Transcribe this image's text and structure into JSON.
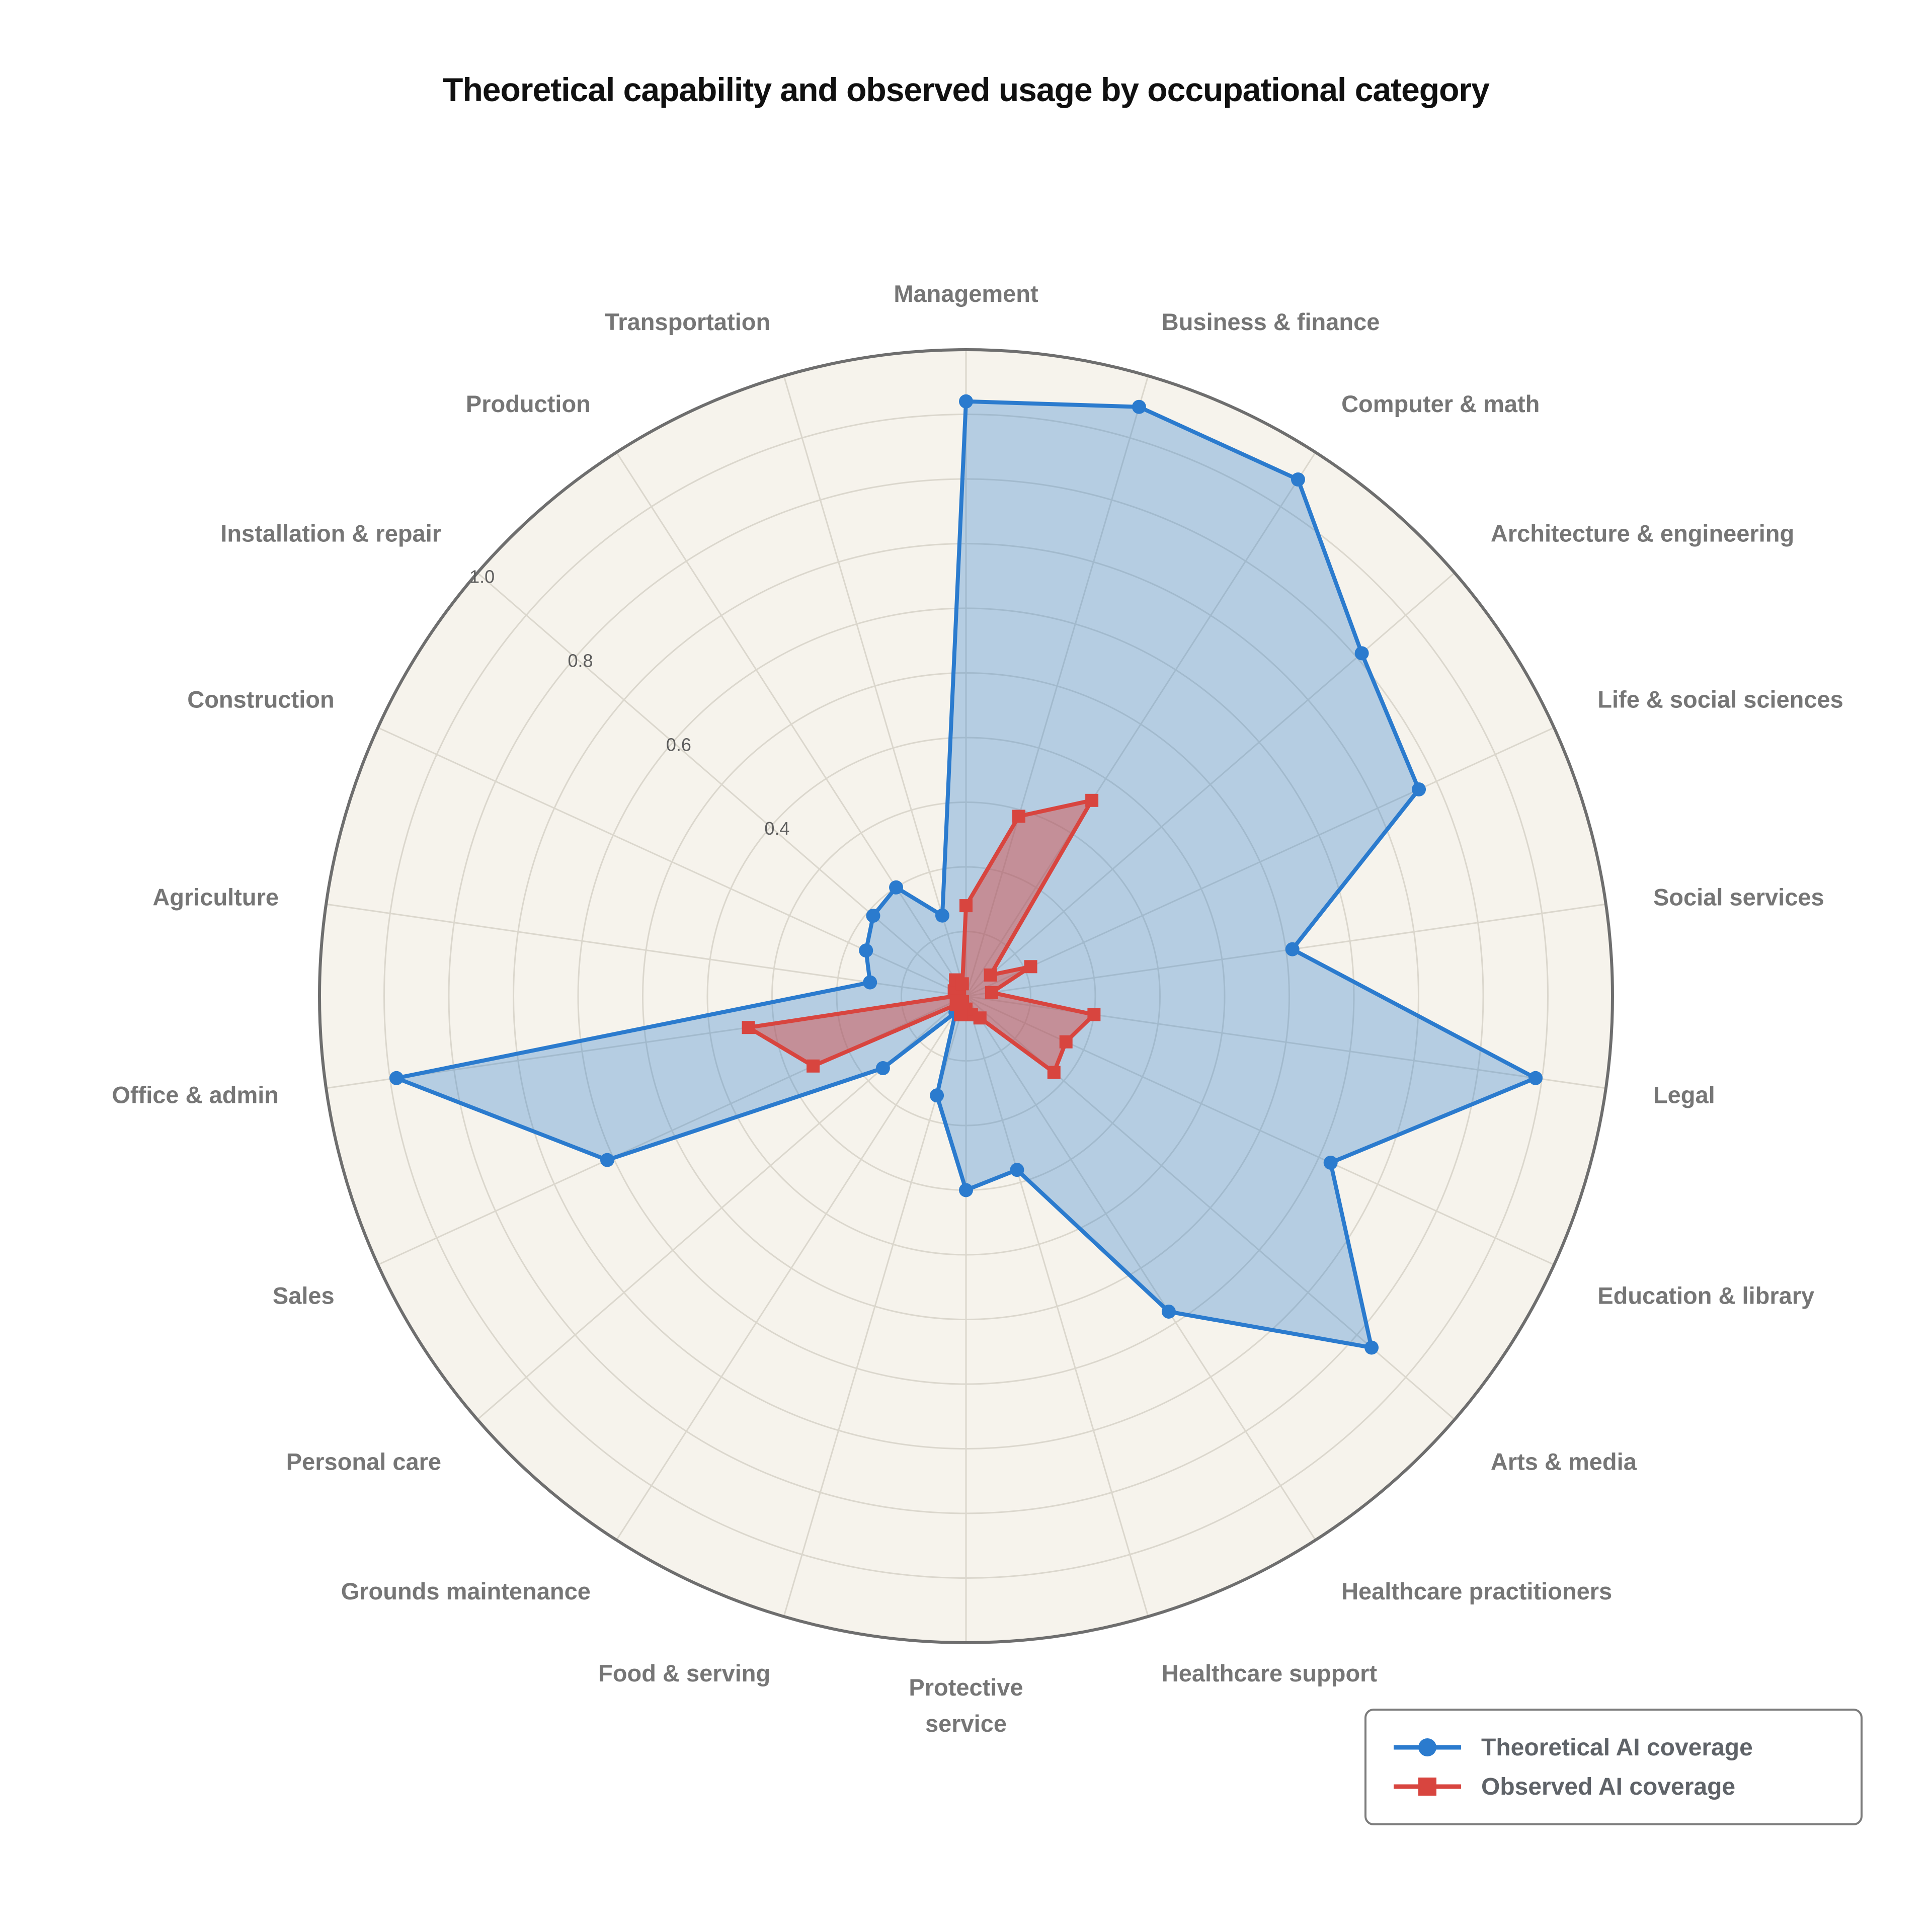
{
  "title": "Theoretical capability and observed usage by occupational category",
  "chart_data": {
    "type": "radar",
    "title": "Theoretical capability and observed usage by occupational category",
    "categories": [
      "Management",
      "Business & finance",
      "Computer & math",
      "Architecture & engineering",
      "Life & social sciences",
      "Social services",
      "Legal",
      "Education & library",
      "Arts & media",
      "Healthcare practitioners",
      "Healthcare support",
      "Protective service",
      "Food & serving",
      "Grounds maintenance",
      "Personal care",
      "Sales",
      "Office & admin",
      "Agriculture",
      "Construction",
      "Installation & repair",
      "Production",
      "Transportation"
    ],
    "series": [
      {
        "name": "Theoretical AI coverage",
        "color": "#2b7bce",
        "marker": "circle",
        "fill_opacity": 0.32,
        "values": [
          0.92,
          0.95,
          0.95,
          0.81,
          0.77,
          0.51,
          0.89,
          0.62,
          0.83,
          0.58,
          0.28,
          0.3,
          0.16,
          0.03,
          0.17,
          0.61,
          0.89,
          0.15,
          0.17,
          0.19,
          0.2,
          0.13
        ]
      },
      {
        "name": "Observed AI coverage",
        "color": "#d8453f",
        "marker": "square",
        "fill_opacity": 0.45,
        "values": [
          0.14,
          0.29,
          0.36,
          0.05,
          0.11,
          0.04,
          0.2,
          0.17,
          0.18,
          0.04,
          0.03,
          0.02,
          0.03,
          0.01,
          0.02,
          0.26,
          0.34,
          0.01,
          0.02,
          0.02,
          0.03,
          0.02
        ]
      }
    ],
    "radial_ticks": [
      0.4,
      0.6,
      0.8,
      1.0
    ],
    "rlim": [
      0,
      1.0
    ],
    "grid_step": 0.1,
    "start_angle_deg": 90,
    "direction": "clockwise",
    "grid": true,
    "legend_position": "bottom-right"
  },
  "colors": {
    "page_bg": "#ffffff",
    "plot_bg": "#f6f3ec",
    "grid": "#dbd7cd",
    "outer_ring": "#6e6e6e",
    "category_label": "#767676",
    "tick_label": "#5c5c5c",
    "title": "#101010",
    "legend_border": "#7c7c7c",
    "legend_text": "#5f6368",
    "theoretical_blue": "#2b7bce",
    "observed_red": "#d8453f"
  }
}
